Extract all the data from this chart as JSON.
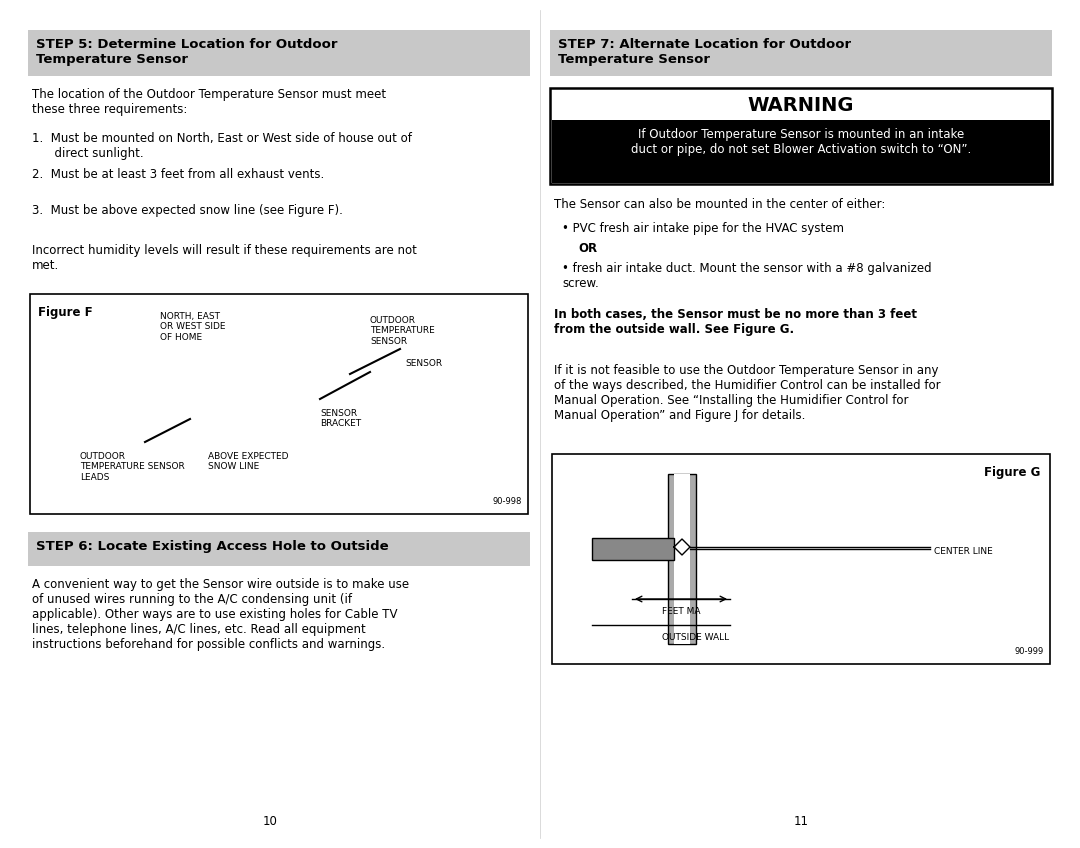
{
  "page_bg": "#ffffff",
  "col_divider": 0.5,
  "left_col": {
    "step5_header": "STEP 5: Determine Location for Outdoor\nTemperature Sensor",
    "step5_header_bg": "#c8c8c8",
    "para1": "The location of the Outdoor Temperature Sensor must meet\nthese three requirements:",
    "items": [
      "1.  Must be mounted on North, East or West side of house out of\n      direct sunlight.",
      "2.  Must be at least 3 feet from all exhaust vents.",
      "3.  Must be above expected snow line (see Figure F)."
    ],
    "figure_f_bold": "Figure F",
    "para2": "Incorrect humidity levels will result if these requirements are not\nmet.",
    "figure_f_labels": {
      "north_east": "NORTH, EAST\nOR WEST SIDE\nOF HOME",
      "outdoor_temp": "OUTDOOR\nTEMPERATURE\nSENSOR",
      "sensor": "SENSOR",
      "sensor_bracket": "SENSOR\nBRACKET",
      "outdoor_leads": "OUTDOOR\nTEMPERATURE SENSOR\nLEADS",
      "above_snow": "ABOVE EXPECTED\nSNOW LINE",
      "part_num": "90-998"
    },
    "step6_header": "STEP 6: Locate Existing Access Hole to Outside",
    "step6_header_bg": "#c8c8c8",
    "step6_para": "A convenient way to get the Sensor wire outside is to make use\nof unused wires running to the A/C condensing unit (if\napplicable). Other ways are to use existing holes for Cable TV\nlines, telephone lines, A/C lines, etc. Read all equipment\ninstructions beforehand for possible conflicts and warnings.",
    "page_num_left": "10"
  },
  "right_col": {
    "step7_header": "STEP 7: Alternate Location for Outdoor\nTemperature Sensor",
    "step7_header_bg": "#c8c8c8",
    "warning_title": "WARNING",
    "warning_title_bg": "#ffffff",
    "warning_body": "If Outdoor Temperature Sensor is mounted in an intake\nduct or pipe, do not set Blower Activation switch to “ON”.",
    "warning_body_bg": "#000000",
    "warning_body_color": "#ffffff",
    "para_sensor": "The Sensor can also be mounted in the center of either:",
    "bullet1": "PVC fresh air intake pipe for the HVAC system",
    "bullet1_or": "OR",
    "bullet2": "fresh air intake duct. Mount the sensor with a #8 galvanized\nscrew.",
    "bold_para": "In both cases, the Sensor must be no more than 3 feet\nfrom the outside wall. See Figure G.",
    "para3": "If it is not feasible to use the Outdoor Temperature Sensor in any\nof the ways described, the Humidifier Control can be installed for\nManual Operation. See “Installing the Humidifier Control for\nManual Operation” and Figure J for details.",
    "figure_g_bold": "Figure G",
    "figure_g_labels": {
      "center_line": "CENTER LINE",
      "feet_ma": "FEET MA",
      "outside_wall": "OUTSIDE WALL",
      "part_num": "90-999"
    },
    "page_num_right": "11"
  }
}
